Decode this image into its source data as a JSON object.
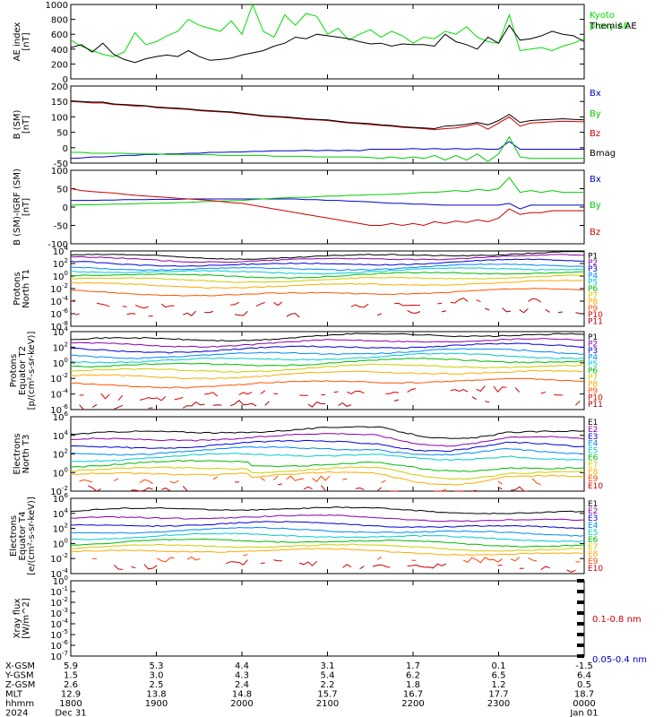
{
  "chart_data": {
    "type": "line",
    "time_ticks": [
      "1800",
      "1900",
      "2000",
      "2100",
      "2200",
      "2300",
      "0000"
    ],
    "panels": [
      {
        "id": "ae",
        "ylabel": [
          "AE index",
          "[nT]"
        ],
        "yticks": [
          "1000",
          "800",
          "600",
          "400",
          "200",
          "0"
        ],
        "ylim": [
          0,
          1000
        ],
        "series": [
          {
            "name": "Kyoto proxy AE",
            "color": "#00dd00",
            "values": [
              520,
              440,
              380,
              330,
              300,
              360,
              620,
              460,
              500,
              580,
              640,
              800,
              720,
              680,
              640,
              780,
              600,
              1000,
              640,
              560,
              860,
              720,
              880,
              840,
              600,
              680,
              520,
              600,
              660,
              560,
              640,
              580,
              480,
              560,
              540,
              640,
              600,
              700,
              560,
              500,
              480,
              860,
              380,
              400,
              420,
              380,
              440,
              480,
              540
            ]
          },
          {
            "name": "Themis AE",
            "color": "#000000",
            "values": [
              420,
              460,
              360,
              480,
              330,
              260,
              220,
              270,
              300,
              320,
              300,
              380,
              300,
              250,
              260,
              280,
              320,
              350,
              380,
              440,
              480,
              560,
              540,
              600,
              580,
              560,
              540,
              500,
              470,
              480,
              440,
              470,
              460,
              460,
              440,
              600,
              500,
              460,
              400,
              560,
              480,
              720,
              520,
              540,
              580,
              640,
              600,
              580,
              500
            ]
          }
        ]
      },
      {
        "id": "bsm",
        "ylabel": [
          "B (SM)",
          "[nT]"
        ],
        "yticks": [
          "200",
          "150",
          "100",
          "50",
          "0",
          "-50"
        ],
        "ylim": [
          -50,
          200
        ],
        "series": [
          {
            "name": "Bx",
            "color": "#0000cc",
            "values": [
              -35,
              -33,
              -30,
              -30,
              -28,
              -25,
              -25,
              -22,
              -22,
              -20,
              -20,
              -18,
              -18,
              -15,
              -15,
              -14,
              -14,
              -12,
              -12,
              -10,
              -10,
              -10,
              -8,
              -10,
              -8,
              -10,
              -8,
              -10,
              -5,
              -5,
              -5,
              -5,
              -3,
              -5,
              -3,
              -5,
              -3,
              -5,
              -3,
              -5,
              -5,
              20,
              -5,
              -5,
              -5,
              -5,
              -5,
              -5,
              -5
            ]
          },
          {
            "name": "By",
            "color": "#00cc00",
            "values": [
              -15,
              -15,
              -18,
              -18,
              -18,
              -18,
              -20,
              -20,
              -20,
              -22,
              -22,
              -22,
              -22,
              -22,
              -25,
              -25,
              -25,
              -25,
              -25,
              -28,
              -28,
              -28,
              -28,
              -30,
              -30,
              -30,
              -30,
              -30,
              -32,
              -35,
              -30,
              -35,
              -30,
              -35,
              -25,
              -40,
              -25,
              -40,
              -20,
              -45,
              -20,
              35,
              -30,
              -35,
              -35,
              -35,
              -35,
              -35,
              -35
            ]
          },
          {
            "name": "Bz",
            "color": "#cc0000",
            "values": [
              150,
              148,
              145,
              145,
              140,
              138,
              135,
              135,
              130,
              128,
              126,
              124,
              120,
              118,
              116,
              114,
              110,
              106,
              102,
              100,
              98,
              95,
              92,
              90,
              88,
              84,
              80,
              78,
              75,
              72,
              70,
              66,
              64,
              62,
              58,
              62,
              64,
              70,
              78,
              60,
              80,
              100,
              70,
              80,
              82,
              84,
              86,
              85,
              84
            ]
          },
          {
            "name": "Bmag",
            "color": "#000000",
            "values": [
              152,
              150,
              148,
              148,
              142,
              140,
              138,
              136,
              132,
              130,
              128,
              126,
              122,
              120,
              118,
              116,
              112,
              108,
              104,
              102,
              100,
              97,
              94,
              92,
              90,
              86,
              82,
              80,
              78,
              74,
              72,
              68,
              66,
              64,
              62,
              70,
              72,
              76,
              82,
              74,
              88,
              108,
              82,
              88,
              90,
              92,
              94,
              92,
              90
            ]
          }
        ]
      },
      {
        "id": "bigrf",
        "ylabel": [
          "B (SM)-IGRF (SM)",
          "[nT]"
        ],
        "yticks": [
          "100",
          "50",
          "0",
          "-50",
          "-100"
        ],
        "ylim": [
          -100,
          100
        ],
        "series": [
          {
            "name": "Bx",
            "color": "#0000cc",
            "values": [
              18,
              18,
              18,
              19,
              19,
              20,
              20,
              20,
              21,
              21,
              21,
              22,
              22,
              22,
              22,
              22,
              22,
              22,
              22,
              22,
              22,
              22,
              20,
              20,
              18,
              18,
              16,
              15,
              14,
              12,
              10,
              10,
              8,
              8,
              6,
              5,
              5,
              5,
              5,
              5,
              5,
              10,
              -5,
              5,
              5,
              5,
              5,
              5,
              5
            ]
          },
          {
            "name": "By",
            "color": "#00cc00",
            "values": [
              5,
              6,
              6,
              7,
              8,
              8,
              9,
              10,
              10,
              11,
              12,
              13,
              14,
              15,
              16,
              17,
              18,
              20,
              22,
              24,
              25,
              26,
              26,
              28,
              30,
              30,
              32,
              32,
              34,
              34,
              35,
              36,
              38,
              40,
              40,
              42,
              45,
              42,
              48,
              45,
              50,
              80,
              40,
              45,
              40,
              45,
              40,
              40,
              40
            ]
          },
          {
            "name": "Bz",
            "color": "#cc0000",
            "values": [
              50,
              45,
              42,
              40,
              38,
              35,
              32,
              30,
              28,
              26,
              24,
              22,
              20,
              18,
              15,
              12,
              10,
              5,
              0,
              -5,
              -10,
              -15,
              -20,
              -25,
              -30,
              -35,
              -40,
              -45,
              -50,
              -50,
              -45,
              -50,
              -45,
              -50,
              -40,
              -45,
              -38,
              -42,
              -35,
              -40,
              -30,
              -5,
              -20,
              -15,
              -15,
              -10,
              -10,
              -10,
              -10
            ]
          }
        ]
      },
      {
        "id": "pn",
        "ylabel": [
          "Protons",
          "North T1"
        ],
        "yticks": [
          "10^4",
          "10^2",
          "10^0",
          "10^-2",
          "10^-4",
          "10^-6",
          "10^-8"
        ],
        "log": true,
        "ylim": [
          -8,
          4
        ],
        "base": [
          3.3,
          2.8,
          2.1,
          1.4,
          0.9,
          0.3,
          -0.4,
          -1.3,
          -2.6,
          -4.3,
          -5.8
        ],
        "legend": [
          "P1",
          "P2",
          "P3",
          "P4",
          "P5",
          "P6",
          "P7",
          "P8",
          "P9",
          "P10",
          "P11"
        ]
      },
      {
        "id": "pe",
        "ylabel": [
          "Protons",
          "Equator T2",
          "[p/(cm²-s-sr-keV)]"
        ],
        "yticks": [
          "10^4",
          "10^2",
          "10^0",
          "10^-2",
          "10^-4",
          "10^-6"
        ],
        "log": true,
        "ylim": [
          -6,
          4
        ],
        "base": [
          3.3,
          2.6,
          1.9,
          1.2,
          0.6,
          0.0,
          -0.7,
          -1.5,
          -2.6,
          -3.9,
          -5.2
        ],
        "legend": [
          "P1",
          "P2",
          "P3",
          "P4",
          "P5",
          "P6",
          "P7",
          "P8",
          "P9",
          "P10",
          "P11"
        ]
      },
      {
        "id": "en",
        "ylabel": [
          "Electrons",
          "North T3"
        ],
        "yticks": [
          "10^6",
          "10^4",
          "10^2",
          "10^0",
          "10^-2"
        ],
        "log": true,
        "ylim": [
          -3,
          6
        ],
        "base": [
          4.2,
          3.4,
          2.6,
          1.9,
          1.2,
          0.5,
          -0.2,
          -0.8,
          -1.5,
          -2.4
        ],
        "legend": [
          "E1",
          "E2",
          "E3",
          "E4",
          "E5",
          "E6",
          "E7",
          "E8",
          "E9",
          "E10"
        ]
      },
      {
        "id": "ee",
        "ylabel": [
          "Electrons",
          "Equator T4",
          "[e/(cm²-s-sr-keV)]"
        ],
        "yticks": [
          "10^6",
          "10^4",
          "10^2",
          "10^0",
          "10^-2",
          "10^-4"
        ],
        "log": true,
        "ylim": [
          -5,
          6
        ],
        "base": [
          4.2,
          3.0,
          2.0,
          1.1,
          0.3,
          -0.5,
          -1.2,
          -1.9,
          -2.9,
          -3.9
        ],
        "legend": [
          "E1",
          "E2",
          "E3",
          "E4",
          "E5",
          "E6",
          "E7",
          "E8",
          "E9",
          "E10"
        ]
      },
      {
        "id": "xray",
        "ylabel": [
          "Xray flux",
          "[W/m^2]"
        ],
        "yticks": [
          "10^0",
          "10^-1",
          "10^-2",
          "10^-3",
          "10^-4",
          "10^-5",
          "10^-6",
          "10^-7"
        ],
        "log": true,
        "ylim": [
          -7,
          0
        ],
        "legend": [
          {
            "name": "0.1-0.8 nm",
            "color": "#cc0000"
          },
          {
            "name": "0.05-0.4 nm",
            "color": "#0000cc"
          }
        ]
      }
    ],
    "footer": {
      "rows": [
        {
          "label": "X-GSM",
          "values": [
            "5.9",
            "5.3",
            "4.4",
            "3.1",
            "1.7",
            "0.1",
            "-1.5"
          ]
        },
        {
          "label": "Y-GSM",
          "values": [
            "1.5",
            "3.0",
            "4.3",
            "5.4",
            "6.2",
            "6.5",
            "6.4"
          ]
        },
        {
          "label": "Z-GSM",
          "values": [
            "2.6",
            "2.5",
            "2.4",
            "2.2",
            "1.8",
            "1.2",
            "0.5"
          ]
        },
        {
          "label": "MLT",
          "values": [
            "12.9",
            "13.8",
            "14.8",
            "15.7",
            "16.7",
            "17.7",
            "18.7"
          ]
        },
        {
          "label": "hhmm",
          "values": [
            "1800",
            "1900",
            "2000",
            "2100",
            "2200",
            "2300",
            "0000"
          ]
        },
        {
          "label": "2024",
          "values": [
            "Dec 31",
            "",
            "",
            "",
            "",
            "",
            "Jan 01"
          ]
        }
      ]
    }
  }
}
